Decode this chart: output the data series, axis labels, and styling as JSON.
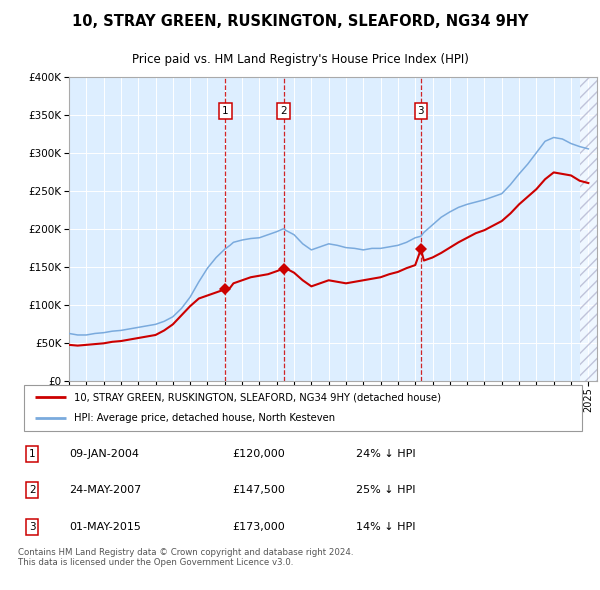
{
  "title": "10, STRAY GREEN, RUSKINGTON, SLEAFORD, NG34 9HY",
  "subtitle": "Price paid vs. HM Land Registry's House Price Index (HPI)",
  "legend_line1": "10, STRAY GREEN, RUSKINGTON, SLEAFORD, NG34 9HY (detached house)",
  "legend_line2": "HPI: Average price, detached house, North Kesteven",
  "footer": "Contains HM Land Registry data © Crown copyright and database right 2024.\nThis data is licensed under the Open Government Licence v3.0.",
  "transactions": [
    {
      "num": 1,
      "date": "09-JAN-2004",
      "price": 120000,
      "pct": "24%",
      "dir": "↓"
    },
    {
      "num": 2,
      "date": "24-MAY-2007",
      "price": 147500,
      "pct": "25%",
      "dir": "↓"
    },
    {
      "num": 3,
      "date": "01-MAY-2015",
      "price": 173000,
      "pct": "14%",
      "dir": "↓"
    }
  ],
  "transaction_dates_decimal": [
    2004.03,
    2007.4,
    2015.33
  ],
  "property_color": "#cc0000",
  "hpi_color": "#7aaadd",
  "background_fill": "#ddeeff",
  "vline_color": "#cc0000",
  "marker_color": "#cc0000",
  "ylim": [
    0,
    400000
  ],
  "yticks": [
    0,
    50000,
    100000,
    150000,
    200000,
    250000,
    300000,
    350000,
    400000
  ],
  "xlim_start": 1995.0,
  "xlim_end": 2025.5,
  "hpi_x": [
    1995.0,
    1995.5,
    1996.0,
    1996.5,
    1997.0,
    1997.5,
    1998.0,
    1998.5,
    1999.0,
    1999.5,
    2000.0,
    2000.5,
    2001.0,
    2001.5,
    2002.0,
    2002.5,
    2003.0,
    2003.5,
    2004.0,
    2004.3,
    2004.5,
    2005.0,
    2005.5,
    2006.0,
    2006.5,
    2007.0,
    2007.4,
    2007.5,
    2008.0,
    2008.5,
    2009.0,
    2009.5,
    2010.0,
    2010.5,
    2011.0,
    2011.5,
    2012.0,
    2012.5,
    2013.0,
    2013.5,
    2014.0,
    2014.5,
    2015.0,
    2015.33,
    2015.5,
    2016.0,
    2016.5,
    2017.0,
    2017.5,
    2018.0,
    2018.5,
    2019.0,
    2019.5,
    2020.0,
    2020.5,
    2021.0,
    2021.5,
    2022.0,
    2022.5,
    2023.0,
    2023.5,
    2024.0,
    2024.5,
    2025.0
  ],
  "hpi_y": [
    62000,
    60000,
    60000,
    62000,
    63000,
    65000,
    66000,
    68000,
    70000,
    72000,
    74000,
    78000,
    84000,
    95000,
    110000,
    130000,
    148000,
    162000,
    173000,
    178000,
    182000,
    185000,
    187000,
    188000,
    192000,
    196000,
    200000,
    198000,
    192000,
    180000,
    172000,
    176000,
    180000,
    178000,
    175000,
    174000,
    172000,
    174000,
    174000,
    176000,
    178000,
    182000,
    188000,
    190000,
    195000,
    205000,
    215000,
    222000,
    228000,
    232000,
    235000,
    238000,
    242000,
    246000,
    258000,
    272000,
    285000,
    300000,
    315000,
    320000,
    318000,
    312000,
    308000,
    305000
  ],
  "prop_x": [
    1995.0,
    1995.5,
    1996.0,
    1996.5,
    1997.0,
    1997.5,
    1998.0,
    1998.5,
    1999.0,
    1999.5,
    2000.0,
    2000.5,
    2001.0,
    2001.5,
    2002.0,
    2002.5,
    2003.0,
    2003.5,
    2004.0,
    2004.03,
    2004.3,
    2004.5,
    2005.0,
    2005.5,
    2006.0,
    2006.5,
    2007.0,
    2007.4,
    2007.5,
    2008.0,
    2008.5,
    2009.0,
    2009.5,
    2010.0,
    2010.5,
    2011.0,
    2011.5,
    2012.0,
    2012.5,
    2013.0,
    2013.5,
    2014.0,
    2014.5,
    2015.0,
    2015.33,
    2015.5,
    2016.0,
    2016.5,
    2017.0,
    2017.5,
    2018.0,
    2018.5,
    2019.0,
    2019.5,
    2020.0,
    2020.5,
    2021.0,
    2021.5,
    2022.0,
    2022.5,
    2023.0,
    2023.5,
    2024.0,
    2024.5,
    2025.0
  ],
  "prop_y": [
    47000,
    46000,
    47000,
    48000,
    49000,
    51000,
    52000,
    54000,
    56000,
    58000,
    60000,
    66000,
    74000,
    86000,
    98000,
    108000,
    112000,
    116000,
    120000,
    120000,
    122000,
    128000,
    132000,
    136000,
    138000,
    140000,
    144000,
    147500,
    148000,
    142000,
    132000,
    124000,
    128000,
    132000,
    130000,
    128000,
    130000,
    132000,
    134000,
    136000,
    140000,
    143000,
    148000,
    152000,
    173000,
    158000,
    162000,
    168000,
    175000,
    182000,
    188000,
    194000,
    198000,
    204000,
    210000,
    220000,
    232000,
    242000,
    252000,
    265000,
    274000,
    272000,
    270000,
    263000,
    260000
  ]
}
